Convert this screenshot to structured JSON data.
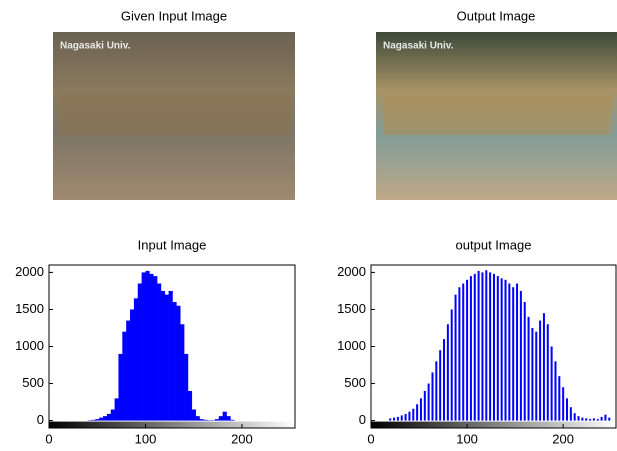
{
  "images": [
    {
      "title": "Given Input Image",
      "watermark": "Nagasaki Univ."
    },
    {
      "title": "Output Image",
      "watermark": "Nagasaki Univ."
    }
  ],
  "chart_data": [
    {
      "type": "histogram",
      "title": "Input Image",
      "color": "#0000ff",
      "bins": [
        0,
        4,
        8,
        12,
        16,
        20,
        24,
        28,
        32,
        36,
        40,
        44,
        48,
        52,
        56,
        60,
        64,
        68,
        72,
        76,
        80,
        84,
        88,
        92,
        96,
        100,
        104,
        108,
        112,
        116,
        120,
        124,
        128,
        132,
        136,
        140,
        144,
        148,
        152,
        156,
        160,
        164,
        168,
        172,
        176,
        180,
        184,
        188,
        192,
        196,
        200,
        204,
        208,
        212,
        216,
        220,
        224,
        228,
        232,
        236,
        240,
        244,
        248,
        252,
        256
      ],
      "counts": [
        0,
        0,
        0,
        0,
        0,
        0,
        0,
        0,
        0,
        0,
        5,
        10,
        20,
        40,
        60,
        90,
        150,
        300,
        900,
        1200,
        1350,
        1500,
        1650,
        1850,
        2000,
        2020,
        1980,
        1950,
        1850,
        1750,
        1700,
        1750,
        1600,
        1550,
        1300,
        900,
        400,
        150,
        60,
        20,
        10,
        5,
        5,
        20,
        60,
        120,
        60,
        10,
        0,
        0,
        0,
        0,
        0,
        0,
        0,
        0,
        0,
        0,
        0,
        0,
        0,
        0,
        0,
        0
      ],
      "xlim": [
        0,
        255
      ],
      "ylim": [
        -100,
        2100
      ],
      "xticks": [
        0,
        100,
        200
      ],
      "yticks": [
        0,
        500,
        1000,
        1500,
        2000
      ]
    },
    {
      "type": "bar",
      "title": "output Image",
      "color": "#0000ff",
      "x": [
        20,
        24,
        28,
        32,
        36,
        40,
        44,
        48,
        52,
        56,
        60,
        64,
        68,
        72,
        76,
        80,
        84,
        88,
        92,
        96,
        100,
        104,
        108,
        112,
        116,
        120,
        124,
        128,
        132,
        136,
        140,
        144,
        148,
        152,
        156,
        160,
        164,
        168,
        172,
        176,
        180,
        184,
        188,
        192,
        196,
        200,
        204,
        208,
        212,
        216,
        220,
        224,
        228,
        232,
        236,
        240,
        244,
        248
      ],
      "values": [
        30,
        40,
        50,
        70,
        90,
        120,
        160,
        220,
        300,
        400,
        500,
        650,
        800,
        950,
        1100,
        1300,
        1500,
        1700,
        1800,
        1850,
        1900,
        1950,
        1980,
        2020,
        2000,
        2030,
        2000,
        1980,
        1950,
        1920,
        1900,
        1850,
        1800,
        1850,
        1750,
        1600,
        1400,
        1250,
        1200,
        1350,
        1450,
        1300,
        1000,
        800,
        600,
        450,
        300,
        180,
        100,
        60,
        40,
        30,
        20,
        30,
        20,
        50,
        80,
        40
      ],
      "xlim": [
        0,
        255
      ],
      "ylim": [
        -100,
        2100
      ],
      "xticks": [
        0,
        100,
        200
      ],
      "yticks": [
        0,
        500,
        1000,
        1500,
        2000
      ]
    }
  ]
}
